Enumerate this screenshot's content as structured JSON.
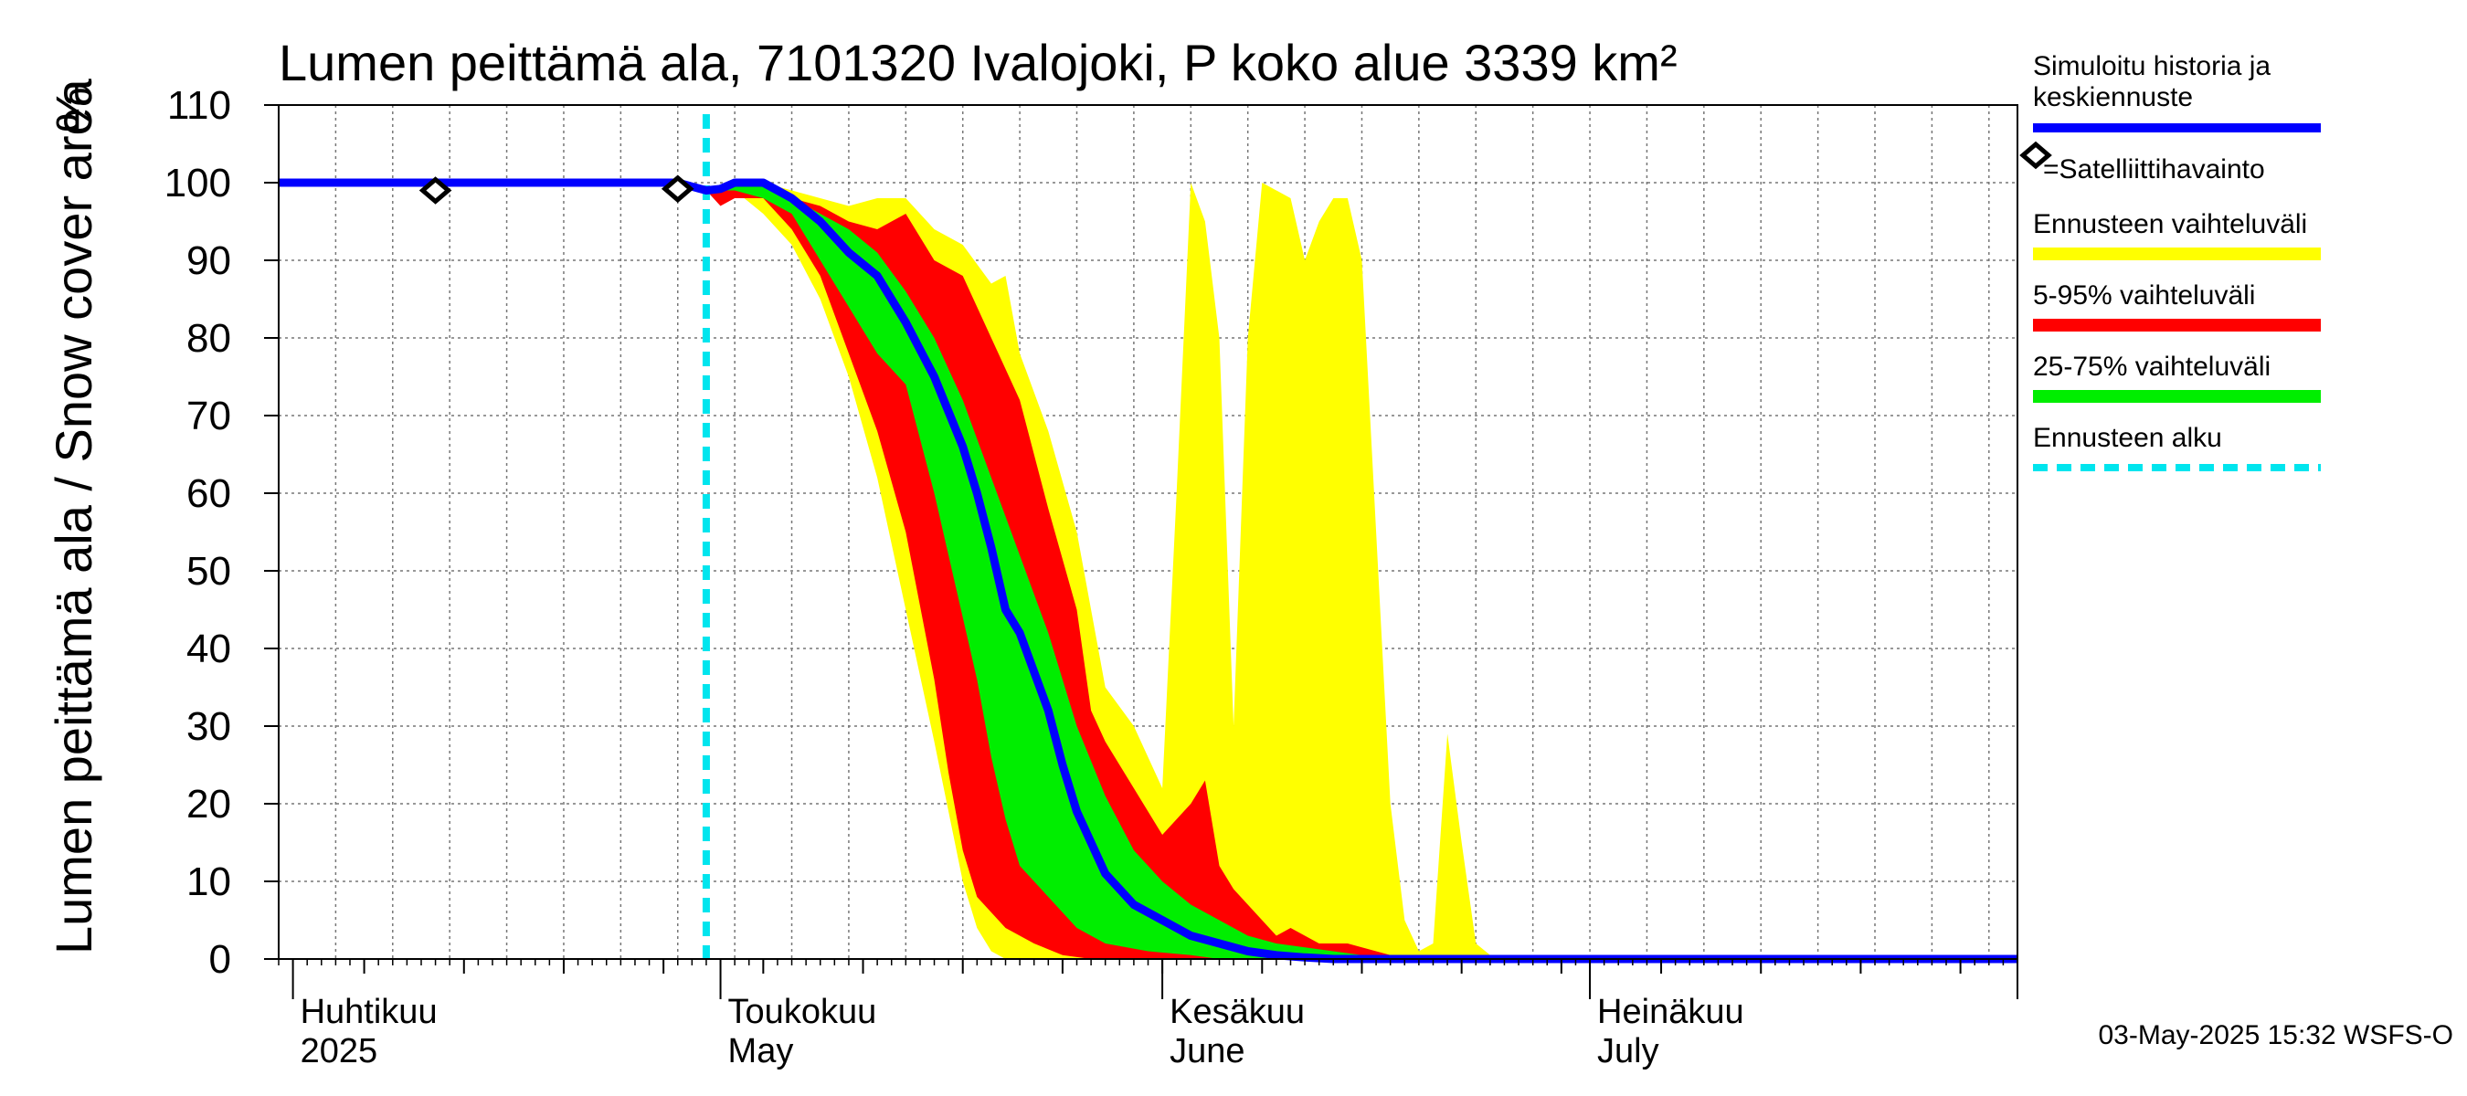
{
  "chart_data": {
    "type": "area",
    "title": "Lumen peittämä ala, 7101320 Ivalojoki, P koko alue 3339 km²",
    "ylabel": "Lumen peittämä ala / Snow cover area",
    "yunit": "%",
    "ylim": [
      0,
      110
    ],
    "yticks": [
      0,
      10,
      20,
      30,
      40,
      50,
      60,
      70,
      80,
      90,
      100,
      110
    ],
    "xlim": [
      "2025-03-31",
      "2025-07-31"
    ],
    "grid": true,
    "month_labels": [
      {
        "date": "2025-04-01",
        "fi": "Huhtikuu",
        "en": "2025"
      },
      {
        "date": "2025-05-01",
        "fi": "Toukokuu",
        "en": "May"
      },
      {
        "date": "2025-06-01",
        "fi": "Kesäkuu",
        "en": "June"
      },
      {
        "date": "2025-07-01",
        "fi": "Heinäkuu",
        "en": "July"
      }
    ],
    "legend": {
      "placement": "right",
      "items": [
        {
          "label": "Simuloitu historia ja keskiennuste",
          "color": "#0000ff",
          "style": "line"
        },
        {
          "label": "=Satelliittihavainto",
          "color": "#000000",
          "style": "diamond"
        },
        {
          "label": "Ennusteen vaihteluväli",
          "color": "#ffff00",
          "style": "band"
        },
        {
          "label": "5-95% vaihteluväli",
          "color": "#ff0000",
          "style": "band"
        },
        {
          "label": "25-75% vaihteluväli",
          "color": "#00ee00",
          "style": "band"
        },
        {
          "label": "Ennusteen alku",
          "color": "#00e5ee",
          "style": "dashed"
        }
      ]
    },
    "forecast_start": "2025-04-30",
    "satellite_observations": [
      {
        "x": "2025-04-11",
        "y": 99
      },
      {
        "x": "2025-04-28",
        "y": 99.2
      }
    ],
    "series": [
      {
        "name": "Simuloitu historia ja keskiennuste",
        "color": "#0000ff",
        "points": [
          [
            "2025-03-31",
            100
          ],
          [
            "2025-04-28",
            100
          ],
          [
            "2025-04-29",
            99.5
          ],
          [
            "2025-04-30",
            99
          ],
          [
            "2025-05-01",
            99.2
          ],
          [
            "2025-05-02",
            100
          ],
          [
            "2025-05-04",
            100
          ],
          [
            "2025-05-06",
            98
          ],
          [
            "2025-05-08",
            95
          ],
          [
            "2025-05-10",
            91
          ],
          [
            "2025-05-12",
            88
          ],
          [
            "2025-05-14",
            82
          ],
          [
            "2025-05-16",
            75
          ],
          [
            "2025-05-18",
            66
          ],
          [
            "2025-05-19",
            60
          ],
          [
            "2025-05-20",
            53
          ],
          [
            "2025-05-21",
            45
          ],
          [
            "2025-05-22",
            42
          ],
          [
            "2025-05-24",
            32
          ],
          [
            "2025-05-25",
            25
          ],
          [
            "2025-05-26",
            19
          ],
          [
            "2025-05-28",
            11
          ],
          [
            "2025-05-30",
            7
          ],
          [
            "2025-06-01",
            5
          ],
          [
            "2025-06-03",
            3
          ],
          [
            "2025-06-05",
            2
          ],
          [
            "2025-06-07",
            1
          ],
          [
            "2025-06-09",
            0.5
          ],
          [
            "2025-06-11",
            0.2
          ],
          [
            "2025-06-13",
            0
          ],
          [
            "2025-07-31",
            0
          ]
        ]
      }
    ],
    "bands": [
      {
        "name": "Ennusteen vaihteluväli",
        "color": "#ffff00",
        "upper": [
          [
            "2025-04-30",
            99
          ],
          [
            "2025-05-02",
            100
          ],
          [
            "2025-05-04",
            100
          ],
          [
            "2025-05-06",
            99
          ],
          [
            "2025-05-08",
            98
          ],
          [
            "2025-05-10",
            97
          ],
          [
            "2025-05-12",
            98
          ],
          [
            "2025-05-14",
            98
          ],
          [
            "2025-05-16",
            94
          ],
          [
            "2025-05-18",
            92
          ],
          [
            "2025-05-20",
            87
          ],
          [
            "2025-05-21",
            88
          ],
          [
            "2025-05-22",
            78
          ],
          [
            "2025-05-24",
            68
          ],
          [
            "2025-05-26",
            55
          ],
          [
            "2025-05-28",
            35
          ],
          [
            "2025-05-30",
            30
          ],
          [
            "2025-06-01",
            22
          ],
          [
            "2025-06-02",
            60
          ],
          [
            "2025-06-03",
            100
          ],
          [
            "2025-06-04",
            95
          ],
          [
            "2025-06-05",
            80
          ],
          [
            "2025-06-06",
            30
          ],
          [
            "2025-06-07",
            80
          ],
          [
            "2025-06-08",
            100
          ],
          [
            "2025-06-10",
            98
          ],
          [
            "2025-06-11",
            90
          ],
          [
            "2025-06-12",
            95
          ],
          [
            "2025-06-13",
            98
          ],
          [
            "2025-06-14",
            98
          ],
          [
            "2025-06-15",
            90
          ],
          [
            "2025-06-16",
            55
          ],
          [
            "2025-06-17",
            20
          ],
          [
            "2025-06-18",
            5
          ],
          [
            "2025-06-19",
            1
          ],
          [
            "2025-06-20",
            2
          ],
          [
            "2025-06-21",
            29
          ],
          [
            "2025-06-22",
            15
          ],
          [
            "2025-06-23",
            2
          ],
          [
            "2025-06-24",
            0.5
          ],
          [
            "2025-06-26",
            0
          ],
          [
            "2025-07-31",
            0
          ]
        ],
        "lower": [
          [
            "2025-04-30",
            99
          ],
          [
            "2025-05-02",
            99
          ],
          [
            "2025-05-04",
            96
          ],
          [
            "2025-05-06",
            92
          ],
          [
            "2025-05-08",
            85
          ],
          [
            "2025-05-10",
            75
          ],
          [
            "2025-05-12",
            62
          ],
          [
            "2025-05-14",
            45
          ],
          [
            "2025-05-16",
            28
          ],
          [
            "2025-05-18",
            10
          ],
          [
            "2025-05-19",
            4
          ],
          [
            "2025-05-20",
            1
          ],
          [
            "2025-05-21",
            0
          ],
          [
            "2025-07-31",
            0
          ]
        ]
      },
      {
        "name": "5-95% vaihteluväli",
        "color": "#ff0000",
        "upper": [
          [
            "2025-04-30",
            99
          ],
          [
            "2025-05-02",
            100
          ],
          [
            "2025-05-04",
            100
          ],
          [
            "2025-05-06",
            98
          ],
          [
            "2025-05-08",
            97
          ],
          [
            "2025-05-10",
            95
          ],
          [
            "2025-05-12",
            94
          ],
          [
            "2025-05-14",
            96
          ],
          [
            "2025-05-16",
            90
          ],
          [
            "2025-05-18",
            88
          ],
          [
            "2025-05-20",
            80
          ],
          [
            "2025-05-21",
            76
          ],
          [
            "2025-05-22",
            72
          ],
          [
            "2025-05-24",
            58
          ],
          [
            "2025-05-26",
            45
          ],
          [
            "2025-05-27",
            32
          ],
          [
            "2025-05-28",
            28
          ],
          [
            "2025-05-30",
            22
          ],
          [
            "2025-06-01",
            16
          ],
          [
            "2025-06-03",
            20
          ],
          [
            "2025-06-04",
            23
          ],
          [
            "2025-06-05",
            12
          ],
          [
            "2025-06-06",
            9
          ],
          [
            "2025-06-08",
            5
          ],
          [
            "2025-06-09",
            3
          ],
          [
            "2025-06-10",
            4
          ],
          [
            "2025-06-12",
            2
          ],
          [
            "2025-06-14",
            2
          ],
          [
            "2025-06-16",
            1
          ],
          [
            "2025-06-18",
            0
          ],
          [
            "2025-07-31",
            0
          ]
        ],
        "lower": [
          [
            "2025-04-30",
            99
          ],
          [
            "2025-05-01",
            97
          ],
          [
            "2025-05-02",
            98
          ],
          [
            "2025-05-04",
            98
          ],
          [
            "2025-05-06",
            94
          ],
          [
            "2025-05-08",
            88
          ],
          [
            "2025-05-10",
            78
          ],
          [
            "2025-05-12",
            68
          ],
          [
            "2025-05-14",
            55
          ],
          [
            "2025-05-16",
            36
          ],
          [
            "2025-05-17",
            24
          ],
          [
            "2025-05-18",
            14
          ],
          [
            "2025-05-19",
            8
          ],
          [
            "2025-05-21",
            4
          ],
          [
            "2025-05-23",
            2
          ],
          [
            "2025-05-25",
            0.5
          ],
          [
            "2025-05-27",
            0
          ],
          [
            "2025-07-31",
            0
          ]
        ]
      },
      {
        "name": "25-75% vaihteluväli",
        "color": "#00ee00",
        "upper": [
          [
            "2025-04-30",
            99
          ],
          [
            "2025-05-02",
            100
          ],
          [
            "2025-05-04",
            100
          ],
          [
            "2025-05-06",
            98
          ],
          [
            "2025-05-08",
            96
          ],
          [
            "2025-05-10",
            94
          ],
          [
            "2025-05-12",
            91
          ],
          [
            "2025-05-14",
            86
          ],
          [
            "2025-05-16",
            80
          ],
          [
            "2025-05-18",
            72
          ],
          [
            "2025-05-20",
            62
          ],
          [
            "2025-05-22",
            52
          ],
          [
            "2025-05-24",
            42
          ],
          [
            "2025-05-26",
            30
          ],
          [
            "2025-05-28",
            21
          ],
          [
            "2025-05-30",
            14
          ],
          [
            "2025-06-01",
            10
          ],
          [
            "2025-06-03",
            7
          ],
          [
            "2025-06-05",
            5
          ],
          [
            "2025-06-07",
            3
          ],
          [
            "2025-06-09",
            2
          ],
          [
            "2025-06-11",
            1.5
          ],
          [
            "2025-06-13",
            1
          ],
          [
            "2025-06-15",
            0.5
          ],
          [
            "2025-06-17",
            0
          ],
          [
            "2025-07-31",
            0
          ]
        ],
        "lower": [
          [
            "2025-04-30",
            99
          ],
          [
            "2025-05-02",
            99
          ],
          [
            "2025-05-04",
            98
          ],
          [
            "2025-05-06",
            96
          ],
          [
            "2025-05-08",
            90
          ],
          [
            "2025-05-10",
            84
          ],
          [
            "2025-05-12",
            78
          ],
          [
            "2025-05-14",
            74
          ],
          [
            "2025-05-16",
            60
          ],
          [
            "2025-05-18",
            44
          ],
          [
            "2025-05-19",
            36
          ],
          [
            "2025-05-20",
            26
          ],
          [
            "2025-05-21",
            18
          ],
          [
            "2025-05-22",
            12
          ],
          [
            "2025-05-24",
            8
          ],
          [
            "2025-05-26",
            4
          ],
          [
            "2025-05-28",
            2
          ],
          [
            "2025-05-31",
            1
          ],
          [
            "2025-06-03",
            0.5
          ],
          [
            "2025-06-05",
            0
          ],
          [
            "2025-07-31",
            0
          ]
        ]
      }
    ]
  },
  "footer": {
    "timestamp": "03-May-2025 15:32 WSFS-O"
  }
}
